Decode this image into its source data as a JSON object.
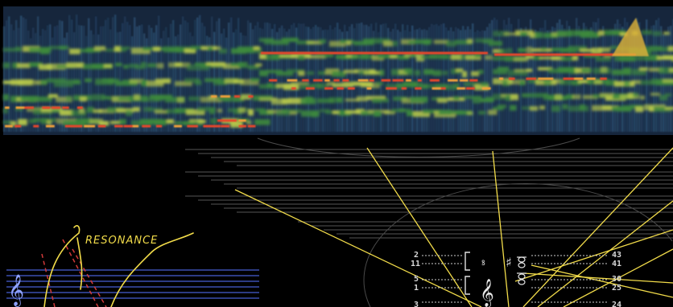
{
  "annotation": {
    "label": "RESONANCE"
  },
  "score": {
    "left_numbers": [
      "2",
      "11",
      "5",
      "1",
      "3"
    ],
    "right_numbers": [
      "43",
      "41",
      "30",
      "25",
      "24"
    ]
  },
  "colors": {
    "spectrogram_base": "#1b2f4a",
    "spectrogram_mid": "#3d8a3c",
    "spectrogram_hot": "#e8472a",
    "ray": "#f2dc4a",
    "staff_blue": "#3a4fb0",
    "staff_grey": "#9a9a9a",
    "annotation": "#f2dc4a",
    "dashes": "#d23a3a"
  },
  "icons": [
    "treble-clef-icon",
    "sharp-sign-icon"
  ]
}
